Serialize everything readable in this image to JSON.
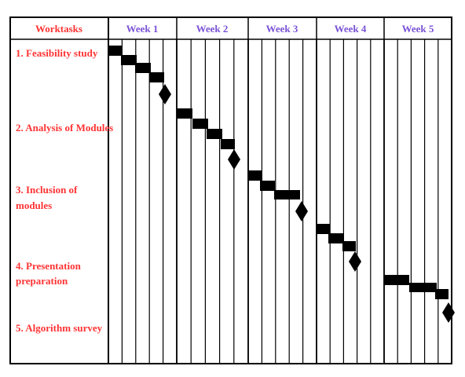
{
  "header": {
    "tasks_label": "Worktasks",
    "weeks": [
      "Week 1",
      "Week 2",
      "Week 3",
      "Week 4",
      "Week 5"
    ]
  },
  "tasks": [
    {
      "lines": [
        "1. Feasibility study"
      ]
    },
    {
      "lines": [
        "2. Analysis of Modules"
      ]
    },
    {
      "lines": [
        "3. Inclusion of",
        "modules"
      ]
    },
    {
      "lines": [
        "4. Presentation",
        "preparation"
      ]
    },
    {
      "lines": [
        "5. Algorithm survey"
      ]
    }
  ],
  "colors": {
    "task_text": "#ff3333",
    "week_text": "#7a52d6",
    "bars": "#000000",
    "grid": "#000000"
  }
}
